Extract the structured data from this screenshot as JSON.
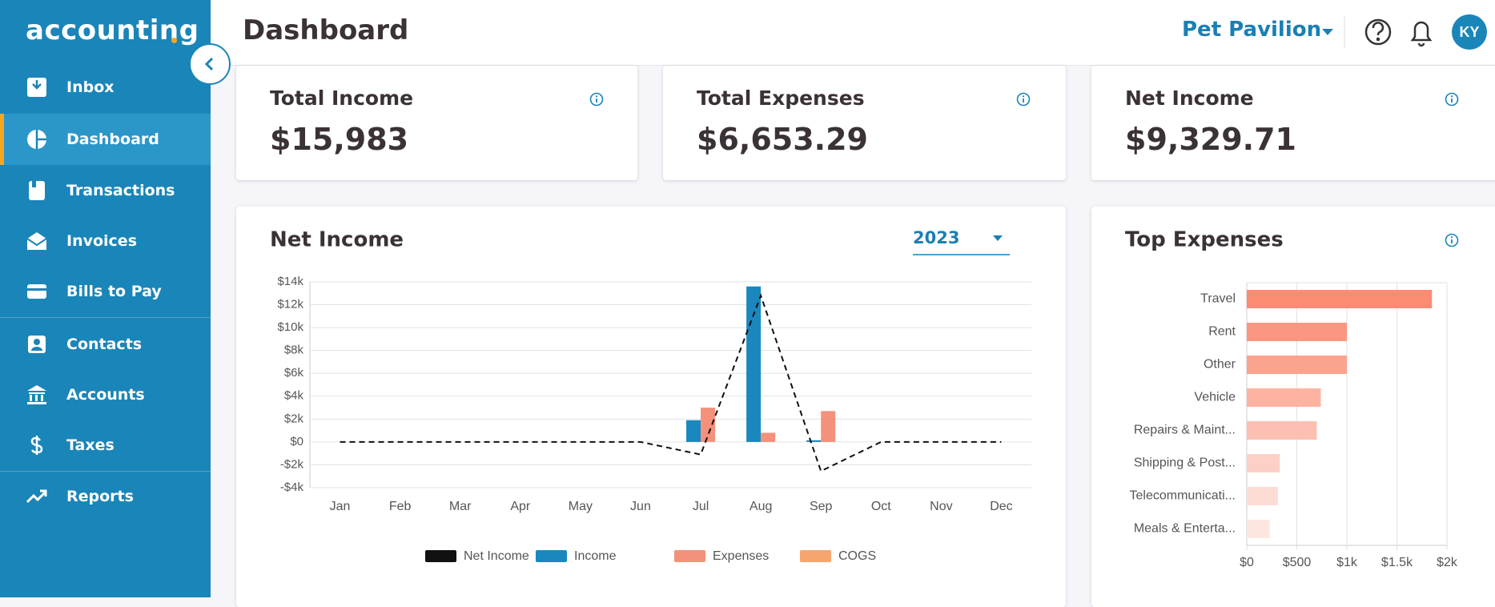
{
  "sidebar": {
    "brand": "accounting",
    "nav": [
      "Inbox",
      "Dashboard",
      "Transactions",
      "Invoices",
      "Bills to Pay",
      "Contacts",
      "Accounts",
      "Taxes",
      "Reports"
    ]
  },
  "header": {
    "title": "Dashboard",
    "company": "Pet Pavilion",
    "avatar": "KY"
  },
  "cards": [
    {
      "label": "Total Income",
      "value": "$15,983"
    },
    {
      "label": "Total Expenses",
      "value": "$6,653.29"
    },
    {
      "label": "Net Income",
      "value": "$9,329.71"
    }
  ],
  "charts": [
    {
      "type": "bar",
      "title": "Net Income",
      "year": "2023",
      "categories": [
        "Jan",
        "Feb",
        "Mar",
        "Apr",
        "May",
        "Jun",
        "Jul",
        "Aug",
        "Sep",
        "Oct",
        "Nov",
        "Dec"
      ],
      "series": [
        {
          "name": "Net Income",
          "color": "#111111",
          "kind": "line",
          "values": [
            0,
            0,
            0,
            0,
            0,
            0,
            -1100,
            12800,
            -2550,
            0,
            0,
            0
          ]
        },
        {
          "name": "Income",
          "color": "#1a88bf",
          "values": [
            0,
            0,
            0,
            0,
            0,
            0,
            1900,
            13600,
            150,
            0,
            0,
            0
          ]
        },
        {
          "name": "Expenses",
          "color": "#f4917a",
          "values": [
            0,
            0,
            0,
            0,
            0,
            0,
            3000,
            800,
            2700,
            0,
            0,
            0
          ]
        },
        {
          "name": "COGS",
          "color": "#f7a56e",
          "values": [
            0,
            0,
            0,
            0,
            0,
            0,
            0,
            0,
            0,
            0,
            0,
            0
          ]
        }
      ],
      "ylim": [
        -4000,
        14000
      ],
      "yticks": [
        {
          "value": -4000,
          "label": "-$4k"
        },
        {
          "value": -2000,
          "label": "-$2k"
        },
        {
          "value": 0,
          "label": "$0"
        },
        {
          "value": 2000,
          "label": "$2k"
        },
        {
          "value": 4000,
          "label": "$4k"
        },
        {
          "value": 6000,
          "label": "$6k"
        },
        {
          "value": 8000,
          "label": "$8k"
        },
        {
          "value": 10000,
          "label": "$10k"
        },
        {
          "value": 12000,
          "label": "$12k"
        },
        {
          "value": 14000,
          "label": "$14k"
        }
      ],
      "grid": true,
      "legend": "bottom"
    },
    {
      "type": "hbar",
      "title": "Top Expenses",
      "categories": [
        "Travel",
        "Rent",
        "Other",
        "Vehicle",
        "Repairs & Maint...",
        "Shipping & Post...",
        "Telecommunicati...",
        "Meals & Enterta..."
      ],
      "values": [
        1850,
        1000,
        1000,
        740,
        700,
        330,
        310,
        230
      ],
      "colors": [
        "#fb8b72",
        "#fb9680",
        "#fba38f",
        "#fcb3a2",
        "#fcc0b2",
        "#fdd0c6",
        "#fddcd4",
        "#fee6e0"
      ],
      "xlim": [
        0,
        2000
      ],
      "xticks": [
        {
          "value": 0,
          "label": "$0"
        },
        {
          "value": 500,
          "label": "$500"
        },
        {
          "value": 1000,
          "label": "$1k"
        },
        {
          "value": 1500,
          "label": "$1.5k"
        },
        {
          "value": 2000,
          "label": "$2k"
        }
      ],
      "grid": true
    }
  ]
}
